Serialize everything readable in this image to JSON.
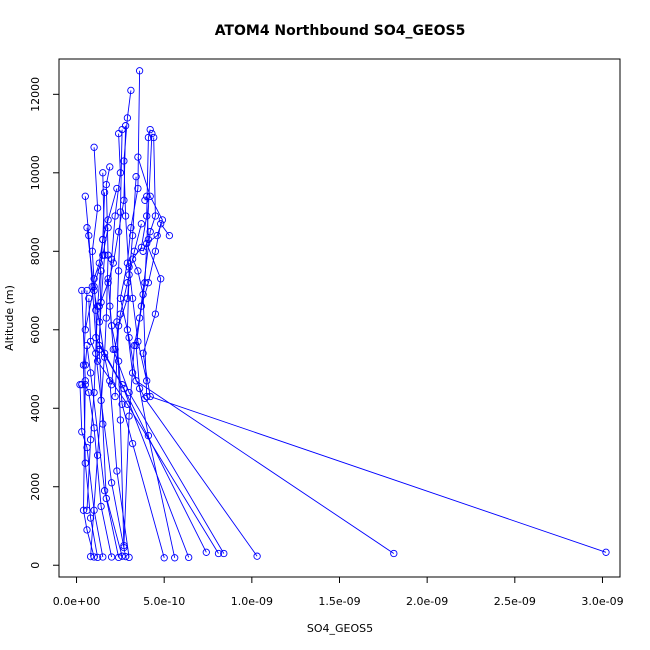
{
  "chart_data": {
    "type": "scatter",
    "title": "ATOM4 Northbound SO4_GEOS5",
    "xlabel": "SO4_GEOS5",
    "ylabel": "Altitude (m)",
    "xlim": [
      -1e-10,
      3.1e-09
    ],
    "ylim": [
      -300,
      12900
    ],
    "x_ticks": [
      0,
      5e-10,
      1e-09,
      1.5e-09,
      2e-09,
      2.5e-09,
      3e-09
    ],
    "x_tick_labels": [
      "0.0e+00",
      "5.0e-10",
      "1.0e-09",
      "1.5e-09",
      "2.0e-09",
      "2.5e-09",
      "3.0e-09"
    ],
    "y_ticks": [
      0,
      2000,
      4000,
      6000,
      8000,
      10000,
      12000
    ],
    "y_tick_labels": [
      "0",
      "2000",
      "4000",
      "6000",
      "8000",
      "10000",
      "12000"
    ],
    "grid": false,
    "line_color": "#0000ff",
    "marker": "open-circle",
    "series": [
      {
        "x": [
          3.02e-09,
          4.2e-10,
          3.8e-10,
          4.5e-10,
          4.8e-10,
          4e-10,
          4.6e-10,
          4.9e-10,
          4.2e-10,
          3.5e-10
        ],
        "y": [
          330,
          4300,
          5400,
          6400,
          7300,
          8200,
          8400,
          8800,
          9400,
          10400
        ]
      },
      {
        "x": [
          1.81e-09,
          3.4e-10,
          3e-10,
          2.5e-10,
          2.9e-10,
          3.1e-10,
          3.5e-10,
          3.6e-10
        ],
        "y": [
          300,
          4700,
          5800,
          6800,
          7700,
          8600,
          9600,
          12600
        ]
      },
      {
        "x": [
          1.03e-09,
          3.9e-10,
          3.2e-10,
          2.9e-10,
          3e-10,
          2.8e-10,
          2.7e-10,
          2.9e-10,
          3.1e-10
        ],
        "y": [
          230,
          4250,
          4900,
          6000,
          7400,
          8900,
          10300,
          11400,
          12100
        ]
      },
      {
        "x": [
          8.4e-10,
          3e-10,
          2.1e-10,
          1.9e-10,
          2e-10,
          2.2e-10,
          2.5e-10,
          2.4e-10
        ],
        "y": [
          300,
          4400,
          5500,
          6600,
          7800,
          8900,
          10000,
          11000
        ]
      },
      {
        "x": [
          8.1e-10,
          2.9e-10,
          1.2e-10,
          1.1e-10,
          9e-11,
          1.2e-10,
          1e-10
        ],
        "y": [
          300,
          4100,
          5200,
          6500,
          8000,
          9100,
          10650
        ]
      },
      {
        "x": [
          7.4e-10,
          2.7e-10,
          1.3e-10,
          1.4e-10,
          1.6e-10,
          1.5e-10
        ],
        "y": [
          330,
          4500,
          5600,
          6700,
          7900,
          10000
        ]
      },
      {
        "x": [
          6.4e-10,
          2.6e-10,
          1.1e-10,
          9e-11,
          7e-11,
          5e-11
        ],
        "y": [
          200,
          4600,
          5800,
          7100,
          8400,
          9400
        ]
      },
      {
        "x": [
          5.6e-10,
          4.1e-10,
          3.6e-10,
          3.4e-10,
          3.9e-10,
          4.3e-10
        ],
        "y": [
          190,
          3300,
          4500,
          5600,
          7200,
          11000
        ]
      },
      {
        "x": [
          5e-10,
          3.2e-10,
          2.6e-10,
          2.4e-10,
          2e-10,
          1.8e-10
        ],
        "y": [
          190,
          3100,
          4100,
          5200,
          6100,
          7300
        ]
      },
      {
        "x": [
          3e-10,
          2.3e-10,
          1.9e-10,
          1.6e-10,
          1.3e-10,
          1e-10,
          6e-11
        ],
        "y": [
          200,
          2400,
          4700,
          5300,
          6200,
          7000,
          8600
        ]
      },
      {
        "x": [
          2.8e-10,
          2e-10,
          1.4e-10,
          1.1e-10,
          8e-11,
          7e-11
        ],
        "y": [
          220,
          2100,
          4200,
          5400,
          5700,
          6800
        ]
      },
      {
        "x": [
          2.6e-10,
          1.6e-10,
          8e-11,
          6e-11,
          5e-11
        ],
        "y": [
          230,
          1900,
          4900,
          5600,
          5100
        ]
      },
      {
        "x": [
          2.4e-10,
          1.7e-10,
          1.5e-10,
          1.3e-10,
          1.4e-10
        ],
        "y": [
          200,
          1700,
          3600,
          5500,
          7500
        ]
      },
      {
        "x": [
          2e-10,
          1.4e-10,
          1e-10,
          7e-11,
          5e-11,
          3e-11
        ],
        "y": [
          210,
          1500,
          3500,
          4400,
          4600,
          4600
        ]
      },
      {
        "x": [
          1.5e-10,
          1e-10,
          6e-11,
          3e-11,
          2e-11
        ],
        "y": [
          210,
          1400,
          3000,
          3400,
          4600
        ]
      },
      {
        "x": [
          1.2e-10,
          8e-11,
          5e-11,
          4e-11,
          6e-11
        ],
        "y": [
          200,
          1200,
          2600,
          5100,
          7000
        ]
      },
      {
        "x": [
          1e-10,
          6e-11,
          4e-11,
          5e-11,
          3e-11
        ],
        "y": [
          210,
          900,
          1400,
          4700,
          7000
        ]
      },
      {
        "x": [
          8e-11,
          1.2e-10,
          1.6e-10,
          1.7e-10,
          1.8e-10,
          1.7e-10,
          1.9e-10
        ],
        "y": [
          220,
          2800,
          5400,
          6300,
          7900,
          9700,
          10150
        ]
      },
      {
        "x": [
          2.7e-10,
          2.5e-10,
          2.3e-10,
          2.4e-10,
          2.5e-10,
          2.6e-10
        ],
        "y": [
          450,
          3700,
          6200,
          7500,
          9000,
          11100
        ]
      },
      {
        "x": [
          2.7e-10,
          3e-10,
          3.3e-10,
          3.6e-10,
          4.2e-10,
          4.5e-10,
          4.4e-10
        ],
        "y": [
          500,
          3800,
          5600,
          6300,
          8500,
          8900,
          10900
        ]
      },
      {
        "x": [
          6e-11,
          8e-11,
          1e-10,
          1.2e-10,
          1.5e-10,
          1.6e-10
        ],
        "y": [
          1400,
          3200,
          4400,
          6600,
          8300,
          9500
        ]
      },
      {
        "x": [
          2e-10,
          2.2e-10,
          2.5e-10,
          2.9e-10,
          3.3e-10,
          3.7e-10
        ],
        "y": [
          4600,
          5500,
          6400,
          7200,
          8000,
          8700
        ]
      },
      {
        "x": [
          4e-10,
          3.8e-10,
          3.5e-10,
          3.2e-10,
          3.7e-10,
          4e-10,
          4.1e-10,
          4.2e-10
        ],
        "y": [
          4300,
          6900,
          7500,
          7800,
          8100,
          8900,
          10900,
          11100
        ]
      },
      {
        "x": [
          1.3e-10,
          1.8e-10,
          2.1e-10,
          2.4e-10,
          2.7e-10,
          2.8e-10
        ],
        "y": [
          6600,
          7200,
          7700,
          8500,
          9300,
          11200
        ]
      },
      {
        "x": [
          5.3e-10,
          4.8e-10,
          4.5e-10,
          4.1e-10,
          3.7e-10
        ],
        "y": [
          8400,
          8700,
          8000,
          7200,
          6600
        ]
      },
      {
        "x": [
          1e-10,
          1.3e-10,
          1.5e-10,
          1.8e-10,
          2.3e-10
        ],
        "y": [
          7300,
          7700,
          8300,
          8800,
          9600
        ]
      },
      {
        "x": [
          3.9e-10,
          4e-10,
          4.1e-10,
          3.8e-10
        ],
        "y": [
          9300,
          9400,
          8300,
          8000
        ]
      },
      {
        "x": [
          2.2e-10,
          2.4e-10,
          2.9e-10,
          3.2e-10,
          3.4e-10
        ],
        "y": [
          4300,
          6100,
          6800,
          8400,
          9900
        ]
      },
      {
        "x": [
          5e-11,
          1e-10,
          1.5e-10,
          1.8e-10
        ],
        "y": [
          6000,
          7100,
          7900,
          8600
        ]
      },
      {
        "x": [
          4e-10,
          3.5e-10,
          3.2e-10,
          3e-10
        ],
        "y": [
          4700,
          5700,
          6800,
          7600
        ]
      }
    ]
  }
}
